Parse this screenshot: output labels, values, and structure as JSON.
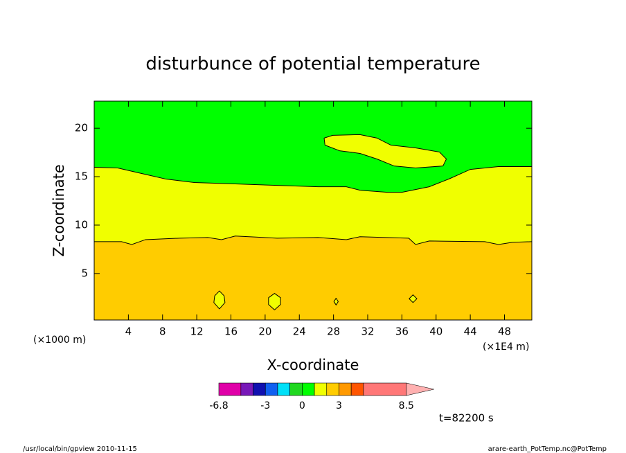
{
  "chart_data": {
    "type": "contour",
    "title": "disturbunce of potential temperature",
    "xlabel": "X-coordinate",
    "ylabel": "Z-coordinate",
    "xunit": "(×1E4 m)",
    "yunit": "(×1000 m)",
    "time_label": "t=82200 s",
    "footer_left": "/usr/local/bin/gpview  2010-11-15",
    "footer_right": "arare-earth_PotTemp.nc@PotTemp",
    "xlim": [
      0,
      51.2
    ],
    "ylim": [
      0.2,
      22.8
    ],
    "xticks": [
      4,
      8,
      12,
      16,
      20,
      24,
      28,
      32,
      36,
      40,
      44,
      48
    ],
    "yticks": [
      5,
      10,
      15,
      20
    ],
    "colorbar": {
      "levels": [
        -6.8,
        -5,
        -4,
        -3,
        -2,
        -1,
        0,
        1,
        2,
        3,
        4,
        5,
        8.5
      ],
      "colors": [
        "#e000a8",
        "#7818b8",
        "#1010b0",
        "#1060f0",
        "#00e0f8",
        "#20d820",
        "#00ff00",
        "#f0ff00",
        "#ffcc00",
        "#ff9900",
        "#ff5500",
        "#ff7777"
      ],
      "extend_color": "#ffb0b0",
      "ticks": [
        -6.8,
        -3,
        0,
        3,
        8.5
      ]
    },
    "base_level": 2,
    "bands": [
      {
        "level": 1,
        "x": [
          0,
          3.2,
          4.4,
          6.0,
          10.0,
          13.3,
          14.9,
          16.5,
          21.4,
          26.2,
          29.5,
          31.1,
          36.8,
          37.6,
          39.2,
          45.7,
          47.3,
          48.9,
          51.2
        ],
        "y": [
          8.29,
          8.29,
          8.0,
          8.5,
          8.65,
          8.72,
          8.5,
          8.87,
          8.65,
          8.72,
          8.5,
          8.8,
          8.65,
          8.0,
          8.36,
          8.29,
          8.0,
          8.22,
          8.29
        ]
      },
      {
        "level": 0,
        "x": [
          0,
          2.75,
          5.2,
          8.4,
          11.7,
          16.5,
          21.4,
          26.2,
          29.5,
          31.1,
          34.3,
          36.0,
          39.2,
          41.6,
          44.0,
          47.3,
          51.2
        ],
        "y": [
          15.97,
          15.9,
          15.4,
          14.75,
          14.4,
          14.25,
          14.1,
          13.96,
          13.96,
          13.6,
          13.39,
          13.39,
          13.96,
          14.8,
          15.75,
          16.04,
          16.04
        ]
      }
    ],
    "islands": [
      {
        "level": 1,
        "x": [
          26.9,
          27.9,
          31.1,
          33.1,
          34.7,
          37.6,
          40.4,
          41.2,
          40.8,
          37.6,
          35.1,
          33.1,
          31.1,
          28.7,
          27.0
        ],
        "y": [
          18.98,
          19.27,
          19.34,
          18.98,
          18.26,
          17.97,
          17.54,
          16.82,
          16.1,
          15.9,
          16.1,
          16.82,
          17.4,
          17.68,
          18.26
        ]
      },
      {
        "level": 1,
        "x": [
          14.65,
          15.2,
          15.3,
          14.65,
          14.0,
          14.1
        ],
        "y": [
          3.2,
          2.7,
          2.0,
          1.35,
          2.0,
          2.7
        ]
      },
      {
        "level": 1,
        "x": [
          21.1,
          21.8,
          21.8,
          21.1,
          20.4,
          20.4
        ],
        "y": [
          2.95,
          2.5,
          1.8,
          1.25,
          1.8,
          2.5
        ]
      },
      {
        "level": 1,
        "x": [
          28.3,
          28.55,
          28.3,
          28.05
        ],
        "y": [
          2.45,
          2.1,
          1.75,
          2.1
        ]
      },
      {
        "level": 1,
        "x": [
          37.3,
          37.75,
          37.3,
          36.85
        ],
        "y": [
          2.8,
          2.4,
          2.0,
          2.4
        ]
      }
    ]
  }
}
